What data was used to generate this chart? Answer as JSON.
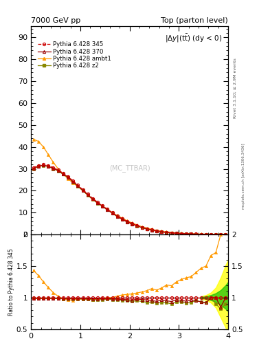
{
  "title_left": "7000 GeV pp",
  "title_right": "Top (parton level)",
  "plot_title": "|\\u0394y|(t\\u0305tbar) (dy < 0)",
  "ylabel_ratio": "Ratio to Pythia 6.428 345",
  "right_label1": "Rivet 3.1.10; ≥ 2.9M events",
  "right_label2": "mcplots.cern.ch [arXiv:1306.3436]",
  "watermark": "(MC_TTBAR)",
  "x": [
    0.05,
    0.15,
    0.25,
    0.35,
    0.45,
    0.55,
    0.65,
    0.75,
    0.85,
    0.95,
    1.05,
    1.15,
    1.25,
    1.35,
    1.45,
    1.55,
    1.65,
    1.75,
    1.85,
    1.95,
    2.05,
    2.15,
    2.25,
    2.35,
    2.45,
    2.55,
    2.65,
    2.75,
    2.85,
    2.95,
    3.05,
    3.15,
    3.25,
    3.35,
    3.45,
    3.55,
    3.65,
    3.75,
    3.85,
    3.95
  ],
  "y345": [
    30.5,
    31.5,
    32.0,
    31.5,
    30.5,
    29.5,
    28.0,
    26.5,
    24.5,
    22.5,
    20.5,
    18.5,
    16.5,
    14.8,
    13.2,
    11.5,
    10.0,
    8.5,
    7.2,
    6.0,
    5.0,
    4.1,
    3.3,
    2.7,
    2.1,
    1.7,
    1.3,
    1.0,
    0.8,
    0.6,
    0.45,
    0.35,
    0.27,
    0.2,
    0.15,
    0.12,
    0.09,
    0.07,
    0.05,
    0.04
  ],
  "y370": [
    30.2,
    31.2,
    31.7,
    31.2,
    30.2,
    29.2,
    27.7,
    26.2,
    24.2,
    22.2,
    20.2,
    18.2,
    16.2,
    14.5,
    13.0,
    11.3,
    9.8,
    8.3,
    7.0,
    5.8,
    4.8,
    4.0,
    3.2,
    2.6,
    2.0,
    1.6,
    1.25,
    0.95,
    0.75,
    0.58,
    0.43,
    0.33,
    0.26,
    0.19,
    0.14,
    0.11,
    0.09,
    0.07,
    0.05,
    0.04
  ],
  "yambt1": [
    43.5,
    42.5,
    40.0,
    36.5,
    33.0,
    30.0,
    27.5,
    25.5,
    23.5,
    22.0,
    20.0,
    18.0,
    16.0,
    14.5,
    13.0,
    11.5,
    10.0,
    8.7,
    7.5,
    6.3,
    5.3,
    4.4,
    3.6,
    3.0,
    2.4,
    1.9,
    1.5,
    1.2,
    0.95,
    0.75,
    0.58,
    0.46,
    0.36,
    0.28,
    0.22,
    0.18,
    0.15,
    0.12,
    0.1,
    0.09
  ],
  "yz2": [
    30.0,
    31.0,
    31.5,
    31.0,
    30.0,
    29.0,
    27.5,
    26.0,
    24.0,
    22.0,
    20.0,
    18.0,
    16.0,
    14.3,
    12.8,
    11.2,
    9.7,
    8.2,
    6.9,
    5.7,
    4.7,
    3.9,
    3.1,
    2.5,
    1.95,
    1.55,
    1.2,
    0.92,
    0.72,
    0.56,
    0.42,
    0.32,
    0.25,
    0.19,
    0.14,
    0.11,
    0.09,
    0.07,
    0.05,
    0.04
  ],
  "color_345": "#cc0000",
  "color_370": "#990000",
  "color_ambt1": "#ff9900",
  "color_z2": "#888800",
  "ylim_main": [
    0,
    95
  ],
  "ylim_ratio": [
    0.5,
    2.0
  ],
  "ratio_ambt1": [
    1.43,
    1.35,
    1.25,
    1.16,
    1.08,
    1.02,
    0.982,
    0.962,
    0.959,
    0.978,
    0.976,
    0.973,
    0.97,
    0.98,
    0.985,
    1.0,
    1.0,
    1.024,
    1.042,
    1.05,
    1.06,
    1.073,
    1.09,
    1.11,
    1.143,
    1.118,
    1.154,
    1.2,
    1.188,
    1.25,
    1.289,
    1.314,
    1.333,
    1.4,
    1.467,
    1.5,
    1.667,
    1.714,
    2.0,
    2.25
  ],
  "ratio_370": [
    0.99,
    0.99,
    0.99,
    0.99,
    0.99,
    0.99,
    0.989,
    0.988,
    0.988,
    0.987,
    0.985,
    0.984,
    0.982,
    0.98,
    0.985,
    0.983,
    0.98,
    0.976,
    0.972,
    0.967,
    0.96,
    0.976,
    0.97,
    0.963,
    0.952,
    0.941,
    0.962,
    0.95,
    0.9375,
    0.967,
    0.956,
    0.943,
    0.963,
    0.95,
    0.933,
    0.917,
    1.0,
    1.0,
    0.85,
    1.0
  ],
  "ratio_z2": [
    0.984,
    0.984,
    0.984,
    0.984,
    0.984,
    0.983,
    0.982,
    0.981,
    0.98,
    0.978,
    0.976,
    0.973,
    0.97,
    0.966,
    0.97,
    0.974,
    0.97,
    0.965,
    0.958,
    0.95,
    0.94,
    0.951,
    0.939,
    0.926,
    0.929,
    0.912,
    0.923,
    0.92,
    0.9,
    0.933,
    0.933,
    0.914,
    0.926,
    0.95,
    0.933,
    0.917,
    1.0,
    0.9,
    0.82,
    0.9
  ],
  "band_x_yellow": [
    3.45,
    3.55,
    3.65,
    3.75,
    3.85,
    3.95,
    4.0
  ],
  "band_yellow_upper": [
    1.02,
    1.04,
    1.08,
    1.16,
    1.32,
    1.52,
    1.6
  ],
  "band_yellow_lower": [
    0.98,
    0.96,
    0.92,
    0.84,
    0.68,
    0.52,
    0.4
  ],
  "band_x_green": [
    3.45,
    3.55,
    3.65,
    3.75,
    3.85,
    3.95,
    4.0
  ],
  "band_green_upper": [
    1.01,
    1.02,
    1.04,
    1.07,
    1.12,
    1.2,
    1.25
  ],
  "band_green_lower": [
    0.99,
    0.98,
    0.96,
    0.93,
    0.88,
    0.82,
    0.78
  ]
}
